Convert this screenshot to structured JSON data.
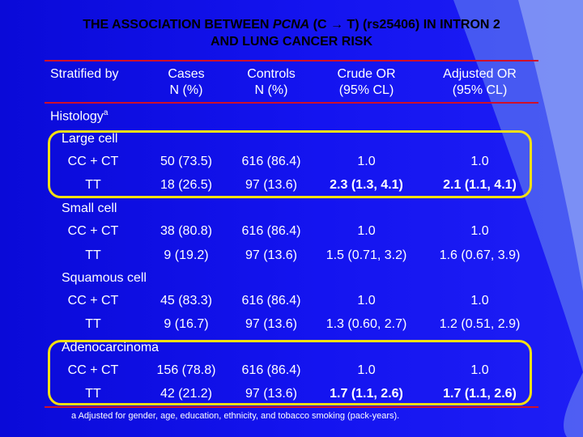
{
  "title": {
    "line1_pre": "THE ASSOCIATION BETWEEN ",
    "gene": "PCNA",
    "line1_post": " (C → T) (rs25406) IN INTRON 2",
    "line2": "AND LUNG CANCER RISK"
  },
  "headers": {
    "stratified": "Stratified by",
    "cases": [
      "Cases",
      "N (%)"
    ],
    "controls": [
      "Controls",
      "N (%)"
    ],
    "crude": [
      "Crude OR",
      "(95% CL)"
    ],
    "adjusted": [
      "Adjusted OR",
      "(95% CL)"
    ]
  },
  "histology_label": "Histology",
  "histology_sup": "a",
  "groups": [
    {
      "name": "Large cell",
      "rows": [
        {
          "genotype": "CC + CT",
          "cases": "50 (73.5)",
          "controls": "616 (86.4)",
          "crude": "1.0",
          "adjusted": "1.0"
        },
        {
          "genotype": "TT",
          "cases": "18 (26.5)",
          "controls": "97 (13.6)",
          "crude": "2.3 (1.3, 4.1)",
          "adjusted": "2.1 (1.1, 4.1)"
        }
      ]
    },
    {
      "name": "Small cell",
      "rows": [
        {
          "genotype": "CC + CT",
          "cases": "38 (80.8)",
          "controls": "616 (86.4)",
          "crude": "1.0",
          "adjusted": "1.0"
        },
        {
          "genotype": "TT",
          "cases": "9 (19.2)",
          "controls": "97 (13.6)",
          "crude": "1.5 (0.71, 3.2)",
          "adjusted": "1.6 (0.67, 3.9)"
        }
      ]
    },
    {
      "name": "Squamous cell",
      "rows": [
        {
          "genotype": "CC + CT",
          "cases": "45 (83.3)",
          "controls": "616 (86.4)",
          "crude": "1.0",
          "adjusted": "1.0"
        },
        {
          "genotype": "TT",
          "cases": "9 (16.7)",
          "controls": "97 (13.6)",
          "crude": "1.3 (0.60, 2.7)",
          "adjusted": "1.2 (0.51, 2.9)"
        }
      ]
    },
    {
      "name": "Adenocarcinoma",
      "rows": [
        {
          "genotype": "CC + CT",
          "cases": "156 (78.8)",
          "controls": "616 (86.4)",
          "crude": "1.0",
          "adjusted": "1.0"
        },
        {
          "genotype": "TT",
          "cases": "42 (21.2)",
          "controls": "97 (13.6)",
          "crude": "1.7 (1.1, 2.6)",
          "adjusted": "1.7 (1.1, 2.6)"
        }
      ]
    }
  ],
  "footnote": "a Adjusted for gender, age, education, ethnicity, and tobacco smoking (pack-years).",
  "colors": {
    "background": "#1414f0",
    "rule": "#d0102a",
    "highlight": "#f4e010",
    "title_text": "#000000"
  }
}
